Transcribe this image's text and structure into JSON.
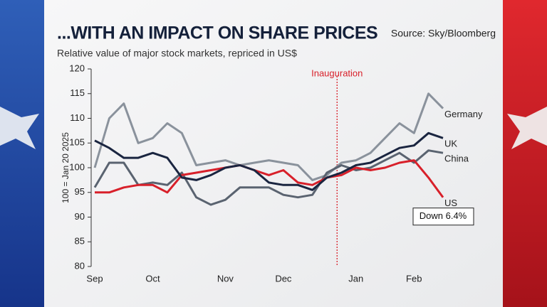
{
  "chart_data": {
    "type": "line",
    "title": "...WITH AN IMPACT ON SHARE PRICES",
    "subtitle": "Relative value of major stock markets, repriced in US$",
    "source": "Source: Sky/Bloomberg",
    "y_label": "100 = Jan 20 2025",
    "categories": [
      "Sep",
      null,
      null,
      null,
      "Oct",
      null,
      null,
      null,
      null,
      "Nov",
      null,
      null,
      null,
      "Dec",
      null,
      null,
      null,
      null,
      "Jan",
      null,
      null,
      null,
      "Feb",
      null,
      null
    ],
    "series": [
      {
        "name": "Germany",
        "color": "#8a929c",
        "values": [
          100,
          110,
          113,
          105,
          106,
          109,
          107,
          100.5,
          101,
          101.5,
          100.5,
          101,
          101.5,
          101,
          100.5,
          97.5,
          98.5,
          101,
          101.5,
          103,
          106,
          109,
          107,
          115,
          112
        ]
      },
      {
        "name": "China",
        "color": "#5a6370",
        "values": [
          96,
          101,
          101,
          96.5,
          97,
          96.5,
          99,
          94,
          92.5,
          93.5,
          96,
          96,
          96,
          94.5,
          94,
          94.5,
          99,
          100.5,
          99.5,
          100,
          101.5,
          103,
          101,
          103.5,
          103
        ]
      },
      {
        "name": "US",
        "color": "#d8202a",
        "values": [
          95,
          95,
          96,
          96.5,
          96.5,
          95,
          98.5,
          99,
          99.5,
          100,
          100.5,
          99.5,
          98.5,
          99.5,
          97,
          96.5,
          98,
          98.5,
          100,
          99.5,
          100,
          101,
          101.5,
          98,
          94
        ]
      },
      {
        "name": "UK",
        "color": "#1a2540",
        "values": [
          105.5,
          104,
          102,
          102,
          103,
          102,
          98,
          97.5,
          98.5,
          100,
          100.5,
          99.5,
          97,
          96.5,
          96.5,
          95.5,
          98,
          99,
          100.5,
          101,
          102.5,
          104,
          104.5,
          107,
          106
        ]
      }
    ],
    "ylim": [
      80,
      120
    ],
    "yticks": [
      80,
      85,
      90,
      95,
      100,
      105,
      110,
      115,
      120
    ],
    "annotations": [
      {
        "text": "Inauguration",
        "at": 16.7
      }
    ],
    "callout": "Down 6.4%"
  }
}
